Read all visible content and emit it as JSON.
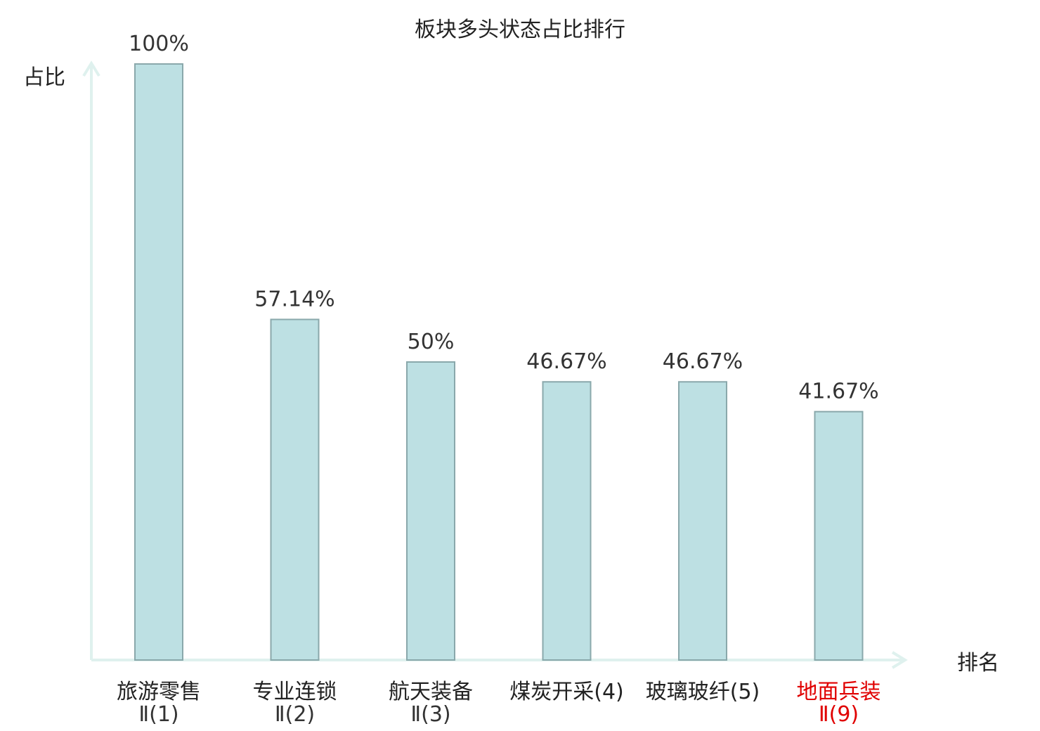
{
  "chart_data": {
    "type": "bar",
    "title": "板块多头状态占比排行",
    "ylabel": "占比",
    "xlabel": "排名",
    "ylim": [
      0,
      100
    ],
    "grid": false,
    "categories": [
      {
        "line1": "旅游零售",
        "line2": "Ⅱ(1)",
        "highlight": false
      },
      {
        "line1": "专业连锁",
        "line2": "Ⅱ(2)",
        "highlight": false
      },
      {
        "line1": "航天装备",
        "line2": "Ⅱ(3)",
        "highlight": false
      },
      {
        "line1": "煤炭开采(4)",
        "line2": "",
        "highlight": false
      },
      {
        "line1": "玻璃玻纤(5)",
        "line2": "",
        "highlight": false
      },
      {
        "line1": "地面兵装",
        "line2": "Ⅱ(9)",
        "highlight": true
      }
    ],
    "values": [
      100,
      57.14,
      50,
      46.67,
      46.67,
      41.67
    ],
    "value_labels": [
      "100%",
      "57.14%",
      "50%",
      "46.67%",
      "46.67%",
      "41.67%"
    ],
    "colors": {
      "bar_fill": "#bde0e3",
      "bar_stroke": "#8aa8ab",
      "axis": "#dff1ee",
      "highlight": "#e00000"
    }
  }
}
